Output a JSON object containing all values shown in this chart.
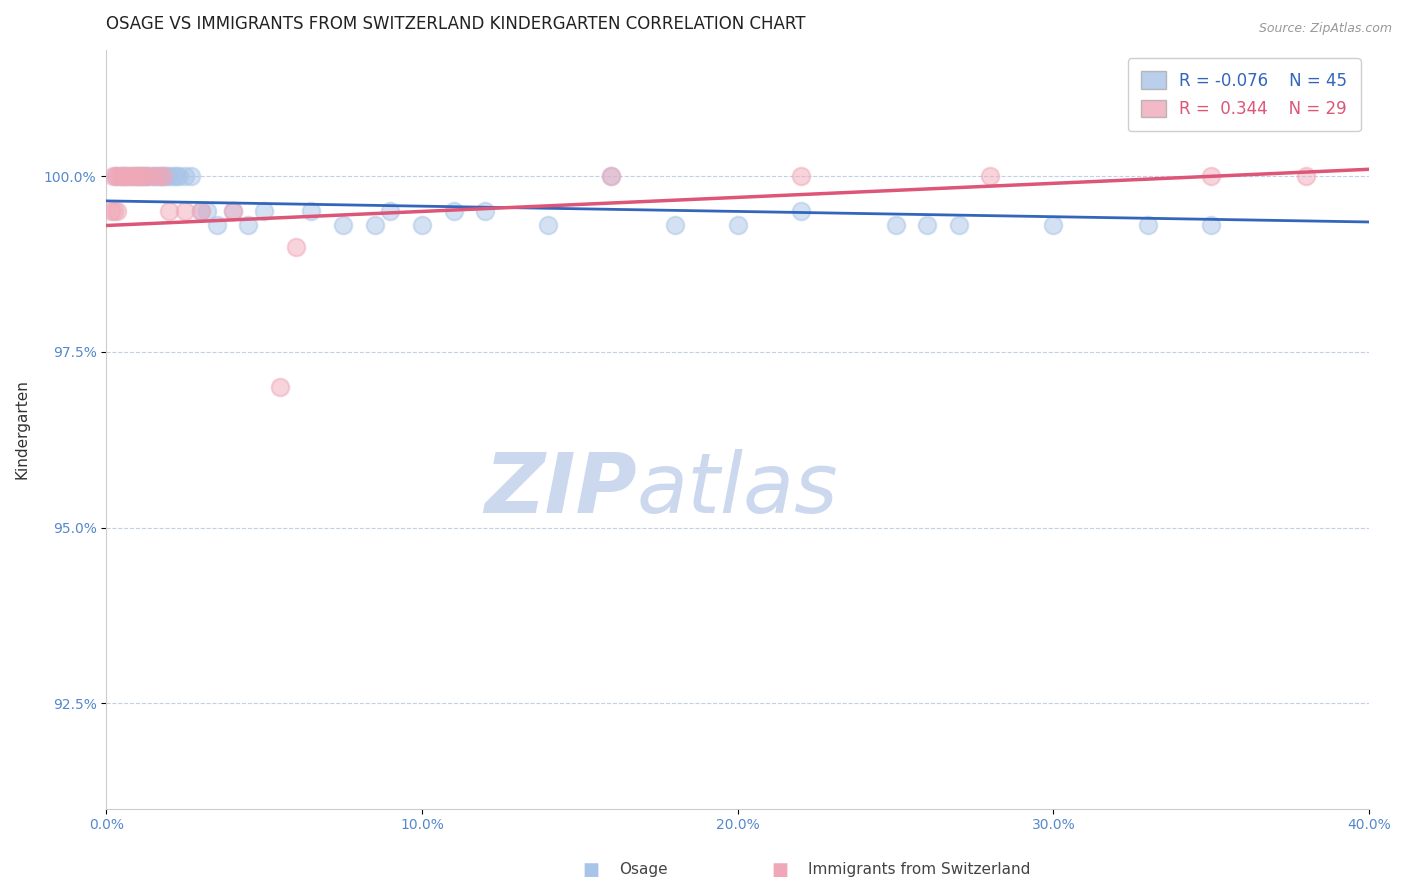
{
  "title": "OSAGE VS IMMIGRANTS FROM SWITZERLAND KINDERGARTEN CORRELATION CHART",
  "source_text": "Source: ZipAtlas.com",
  "xlabel": "",
  "ylabel": "Kindergarten",
  "legend_labels": [
    "Osage",
    "Immigrants from Switzerland"
  ],
  "watermark_zip": "ZIP",
  "watermark_atlas": "atlas",
  "blue_R": -0.076,
  "blue_N": 45,
  "pink_R": 0.344,
  "pink_N": 29,
  "blue_color": "#a8c4e8",
  "pink_color": "#f0a8b8",
  "blue_line_color": "#3366bb",
  "pink_line_color": "#dd5577",
  "xlim": [
    0.0,
    40.0
  ],
  "ylim": [
    91.0,
    101.8
  ],
  "yticks": [
    92.5,
    95.0,
    97.5,
    100.0
  ],
  "ytick_labels": [
    "92.5%",
    "95.0%",
    "97.5%",
    "100.0%"
  ],
  "xticks": [
    0.0,
    10.0,
    20.0,
    30.0,
    40.0
  ],
  "xtick_labels": [
    "0.0%",
    "10.0%",
    "20.0%",
    "30.0%",
    "40.0%"
  ],
  "blue_scatter_x": [
    0.3,
    0.5,
    0.6,
    0.8,
    0.9,
    1.0,
    1.1,
    1.2,
    1.3,
    1.4,
    1.5,
    1.6,
    1.7,
    1.8,
    1.9,
    2.0,
    2.1,
    2.2,
    2.3,
    2.5,
    2.7,
    3.0,
    3.2,
    3.5,
    4.0,
    5.0,
    6.5,
    7.5,
    8.5,
    10.0,
    11.0,
    14.0,
    18.0,
    22.0,
    25.0,
    27.0,
    30.0,
    33.0,
    35.0,
    16.0,
    9.0,
    12.0,
    4.5,
    26.0,
    20.0
  ],
  "blue_scatter_y": [
    100.0,
    100.0,
    100.0,
    100.0,
    100.0,
    100.0,
    100.0,
    100.0,
    100.0,
    100.0,
    100.0,
    100.0,
    100.0,
    100.0,
    100.0,
    100.0,
    100.0,
    100.0,
    100.0,
    100.0,
    100.0,
    99.5,
    99.5,
    99.3,
    99.5,
    99.5,
    99.5,
    99.3,
    99.3,
    99.3,
    99.5,
    99.3,
    99.3,
    99.5,
    99.3,
    99.3,
    99.3,
    99.3,
    99.3,
    100.0,
    99.5,
    99.5,
    99.3,
    99.3,
    99.3
  ],
  "pink_scatter_x": [
    0.2,
    0.3,
    0.4,
    0.5,
    0.6,
    0.7,
    0.8,
    0.9,
    1.0,
    1.1,
    1.2,
    1.3,
    1.5,
    1.7,
    1.8,
    2.0,
    2.5,
    3.0,
    4.0,
    5.5,
    16.0,
    22.0,
    28.0,
    35.0,
    38.0,
    0.15,
    0.25,
    0.35,
    6.0
  ],
  "pink_scatter_y": [
    100.0,
    100.0,
    100.0,
    100.0,
    100.0,
    100.0,
    100.0,
    100.0,
    100.0,
    100.0,
    100.0,
    100.0,
    100.0,
    100.0,
    100.0,
    99.5,
    99.5,
    99.5,
    99.5,
    97.0,
    100.0,
    100.0,
    100.0,
    100.0,
    100.0,
    99.5,
    99.5,
    99.5,
    99.0
  ],
  "blue_line_x0": 0.0,
  "blue_line_y0": 99.65,
  "blue_line_x1": 40.0,
  "blue_line_y1": 99.35,
  "pink_line_x0": 0.0,
  "pink_line_y0": 99.3,
  "pink_line_x1": 40.0,
  "pink_line_y1": 100.1,
  "blue_marker_size": 160,
  "pink_marker_size": 160,
  "title_fontsize": 12,
  "axis_label_fontsize": 11,
  "tick_fontsize": 10,
  "legend_fontsize": 12,
  "source_fontsize": 9,
  "background_color": "#ffffff",
  "tick_color": "#5588cc",
  "grid_color": "#aabbdd",
  "watermark_color": "#ccd8ee",
  "watermark_fontsize": 60
}
